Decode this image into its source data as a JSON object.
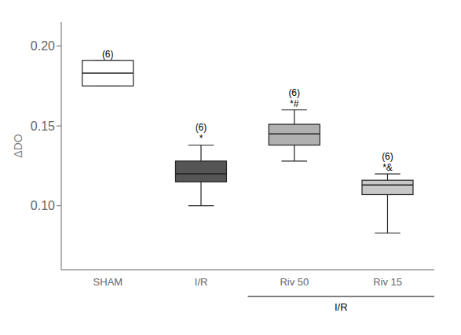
{
  "chart_data": {
    "type": "box",
    "categories": [
      "SHAM",
      "I/R",
      "Riv 50",
      "Riv 15"
    ],
    "q1": [
      0.175,
      0.115,
      0.138,
      0.107
    ],
    "median": [
      0.183,
      0.12,
      0.145,
      0.113
    ],
    "q3": [
      0.191,
      0.128,
      0.151,
      0.116
    ],
    "whislo": [
      0.175,
      0.1,
      0.128,
      0.083
    ],
    "whishi": [
      0.191,
      0.138,
      0.16,
      0.12
    ],
    "colors": [
      "#ffffff",
      "#555555",
      "#b0b0b0",
      "#c8c8c8"
    ],
    "annotations": [
      "(6)",
      "(6)",
      "(6)",
      "(6)"
    ],
    "sig": [
      null,
      "*",
      "*#",
      "*&"
    ],
    "ylabel": "ΔDO",
    "ylim": [
      0.06,
      0.215
    ],
    "yticks": [
      {
        "value": 0.1,
        "label": "0.10"
      },
      0.15,
      {
        "value": 0.2,
        "label": "0.20"
      }
    ],
    "group_label": {
      "text": "I/R",
      "categories": [
        "Riv 50",
        "Riv 15"
      ]
    }
  }
}
